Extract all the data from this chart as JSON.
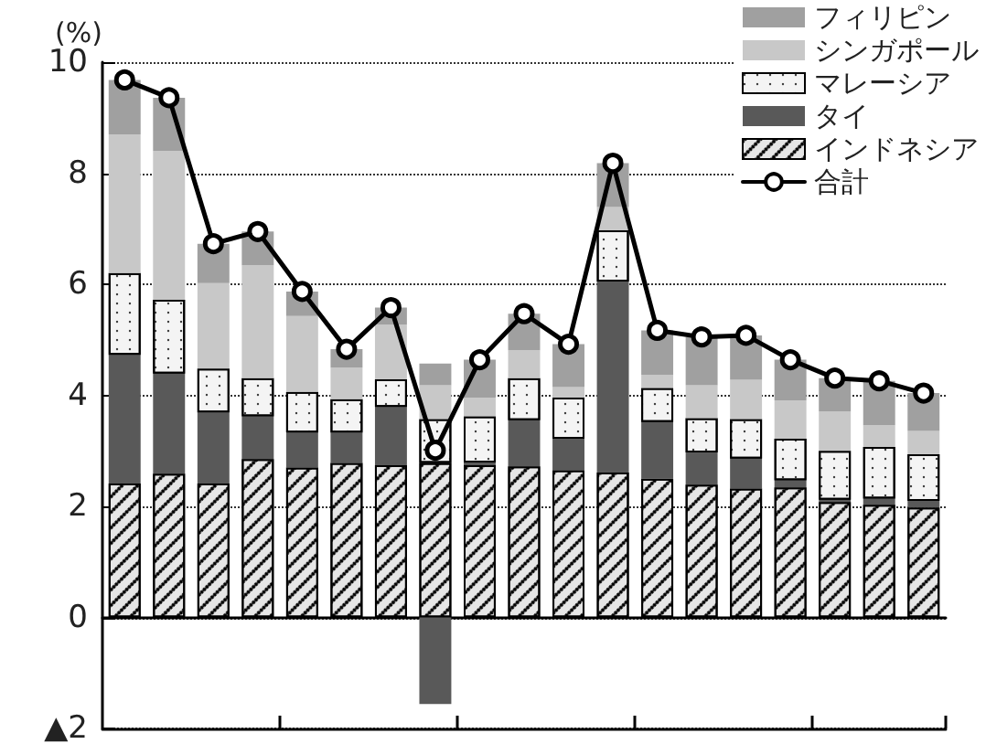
{
  "chart_data": {
    "type": "bar",
    "stacked": true,
    "ylabel": "(%)",
    "categories": [
      null,
      null,
      null,
      null,
      null,
      null,
      null,
      null,
      null,
      null,
      null,
      null,
      null,
      null,
      null,
      null,
      null,
      null,
      null
    ],
    "series": [
      {
        "name": "インドネシア",
        "color": "#e6e6e6",
        "values": [
          2.41,
          2.59,
          2.41,
          2.85,
          2.7,
          2.78,
          2.74,
          2.78,
          2.74,
          2.72,
          2.65,
          2.61,
          2.5,
          2.39,
          2.32,
          2.34,
          2.08,
          2.03,
          1.98
        ]
      },
      {
        "name": "タイ",
        "color": "#595959",
        "values": [
          2.32,
          1.8,
          1.28,
          0.77,
          0.63,
          0.55,
          1.05,
          -1.56,
          0.05,
          0.83,
          0.57,
          3.44,
          1.02,
          0.58,
          0.54,
          0.13,
          0.04,
          0.11,
          0.12
        ]
      },
      {
        "name": "マレーシア",
        "color": "#f4f4f4",
        "values": [
          1.47,
          1.33,
          0.79,
          0.69,
          0.73,
          0.6,
          0.5,
          0.79,
          0.83,
          0.76,
          0.74,
          0.92,
          0.61,
          0.62,
          0.71,
          0.75,
          0.88,
          0.93,
          0.84
        ]
      },
      {
        "name": "シンガポール",
        "color": "#c8c8c8",
        "values": [
          2.5,
          2.68,
          1.54,
          2.03,
          1.37,
          0.57,
          0.98,
          0.61,
          0.34,
          0.5,
          0.19,
          0.42,
          0.24,
          0.59,
          0.71,
          0.69,
          0.71,
          0.39,
          0.42
        ]
      },
      {
        "name": "フィリピン",
        "color": "#a0a0a0",
        "values": [
          0.98,
          0.96,
          0.71,
          0.61,
          0.44,
          0.33,
          0.31,
          0.39,
          0.68,
          0.66,
          0.77,
          0.79,
          0.8,
          0.87,
          0.8,
          0.73,
          0.6,
          0.8,
          0.68
        ]
      },
      {
        "name": "合計",
        "type": "line",
        "color": "#000000",
        "values": [
          9.68,
          9.36,
          6.73,
          6.95,
          5.87,
          4.83,
          5.58,
          3.01,
          4.64,
          5.47,
          4.92,
          8.18,
          5.17,
          5.05,
          5.08,
          4.64,
          4.31,
          4.26,
          4.04
        ]
      }
    ],
    "ylim": [
      -2,
      10
    ],
    "yticks": [
      {
        "value": -2,
        "label": "▲2"
      },
      0,
      2,
      4,
      6,
      8,
      10
    ],
    "grid": "y",
    "legend": "top right",
    "marker": "circle",
    "line_style": "solid"
  }
}
